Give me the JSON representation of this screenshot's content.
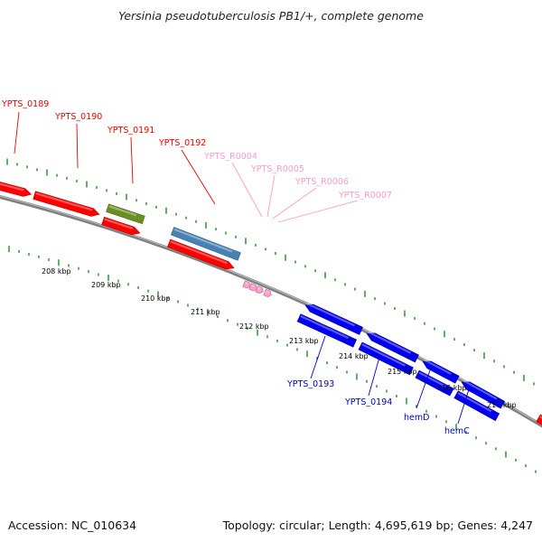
{
  "title": "Yersinia pseudotuberculosis PB1/+, complete genome",
  "footer": {
    "accession": "Accession: NC_010634",
    "summary": "Topology: circular; Length: 4,695,619 bp; Genes: 4,247"
  },
  "scale": {
    "ticks": [
      {
        "label": "208 kbp"
      },
      {
        "label": "209 kbp"
      },
      {
        "label": "210 kbp"
      },
      {
        "label": "211 kbp"
      },
      {
        "label": "212 kbp"
      },
      {
        "label": "213 kbp"
      },
      {
        "label": "214 kbp"
      },
      {
        "label": "215 kbp"
      },
      {
        "label": "216 kbp"
      },
      {
        "label": "217 kbp"
      }
    ]
  },
  "colors": {
    "forward_cds": "#ff0000",
    "reverse_cds": "#0000ee",
    "green_feature": "#6b8e23",
    "steelblue_feature": "#4682b4",
    "pink_feature": "#ff9ec8",
    "backbone": "#808080",
    "ticks": "#228b22"
  },
  "labels": {
    "forward": [
      {
        "name": "YPTS_0189",
        "color": "#ee0000"
      },
      {
        "name": "YPTS_0190",
        "color": "#ee0000"
      },
      {
        "name": "YPTS_0191",
        "color": "#ee0000"
      },
      {
        "name": "YPTS_0192",
        "color": "#ee0000"
      },
      {
        "name": "YPTS_R0004",
        "color": "#ff99cc"
      },
      {
        "name": "YPTS_R0005",
        "color": "#ff99cc"
      },
      {
        "name": "YPTS_R0006",
        "color": "#ff99cc"
      },
      {
        "name": "YPTS_R0007",
        "color": "#ff99cc"
      }
    ],
    "reverse": [
      {
        "name": "YPTS_0193",
        "color": "#0000cc"
      },
      {
        "name": "YPTS_0194",
        "color": "#0000cc"
      },
      {
        "name": "hemD",
        "color": "#0000cc"
      },
      {
        "name": "hemC",
        "color": "#0000cc"
      }
    ]
  }
}
